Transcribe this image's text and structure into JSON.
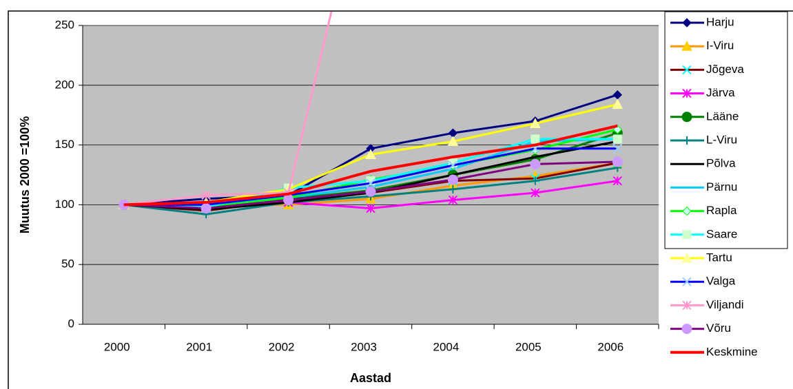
{
  "chart_data": {
    "type": "line",
    "y_label": "Muutus 2000 =100%",
    "x_label": "Aastad",
    "categories": [
      "2000",
      "2001",
      "2002",
      "2003",
      "2004",
      "2005",
      "2006"
    ],
    "ylim": [
      0,
      250
    ],
    "yticks": [
      0,
      50,
      100,
      150,
      200,
      250
    ],
    "grid": true,
    "plot_background": "#c0c0c0",
    "legend": "right",
    "series": [
      {
        "name": "Harju",
        "color": "#000080",
        "marker": "diamond",
        "marker_color": "#000080",
        "values": [
          100,
          105,
          108,
          147,
          160,
          170,
          192
        ]
      },
      {
        "name": "I-Viru",
        "color": "#ff9900",
        "marker": "triangle",
        "marker_color": "#ffcc00",
        "values": [
          100,
          100,
          100,
          105,
          116,
          124,
          135
        ]
      },
      {
        "name": "Jõgeva",
        "color": "#800000",
        "marker": "x",
        "marker_color": "#00ffff",
        "values": [
          100,
          95,
          104,
          110,
          120,
          122,
          135
        ]
      },
      {
        "name": "Järva",
        "color": "#ff00ff",
        "marker": "star",
        "marker_color": "#ff00ff",
        "values": [
          100,
          100,
          102,
          97,
          104,
          110,
          120
        ]
      },
      {
        "name": "Lääne",
        "color": "#008000",
        "marker": "circle",
        "marker_color": "#008000",
        "values": [
          100,
          98,
          105,
          112,
          125,
          138,
          160
        ]
      },
      {
        "name": "L-Viru",
        "color": "#008080",
        "marker": "plus",
        "marker_color": "#008080",
        "values": [
          100,
          92,
          102,
          107,
          113,
          120,
          131
        ]
      },
      {
        "name": "Põlva",
        "color": "#000000",
        "marker": "none",
        "marker_color": "#000000",
        "values": [
          100,
          96,
          102,
          110,
          125,
          140,
          153
        ]
      },
      {
        "name": "Pärnu",
        "color": "#00ccff",
        "marker": "none",
        "marker_color": "#00ccff",
        "values": [
          100,
          100,
          106,
          115,
          130,
          153,
          155
        ]
      },
      {
        "name": "Rapla",
        "color": "#00ff00",
        "marker": "diamond",
        "marker_color": "#ccffff",
        "values": [
          100,
          98,
          106,
          121,
          133,
          146,
          163
        ]
      },
      {
        "name": "Saare",
        "color": "#00ffff",
        "marker": "square",
        "marker_color": "#ccffcc",
        "values": [
          100,
          98,
          114,
          120,
          135,
          155,
          155
        ]
      },
      {
        "name": "Tartu",
        "color": "#ffff00",
        "marker": "triangle",
        "marker_color": "#ffff99",
        "values": [
          100,
          102,
          113,
          142,
          153,
          168,
          184
        ]
      },
      {
        "name": "Valga",
        "color": "#0000ff",
        "marker": "x",
        "marker_color": "#99ccff",
        "values": [
          100,
          100,
          108,
          118,
          133,
          147,
          147
        ]
      },
      {
        "name": "Viljandi",
        "color": "#ff99cc",
        "marker": "star",
        "marker_color": "#ff99cc",
        "values": [
          100,
          108,
          110,
          400,
          null,
          null,
          null
        ]
      },
      {
        "name": "Võru",
        "color": "#800080",
        "marker": "circle",
        "marker_color": "#cc99ff",
        "values": [
          100,
          97,
          104,
          111,
          121,
          134,
          136
        ]
      },
      {
        "name": "Keskmine",
        "color": "#ff0000",
        "marker": "none",
        "marker_color": "#ff0000",
        "line_width": 4,
        "values": [
          100,
          102,
          109,
          128,
          140,
          150,
          166
        ]
      }
    ]
  }
}
